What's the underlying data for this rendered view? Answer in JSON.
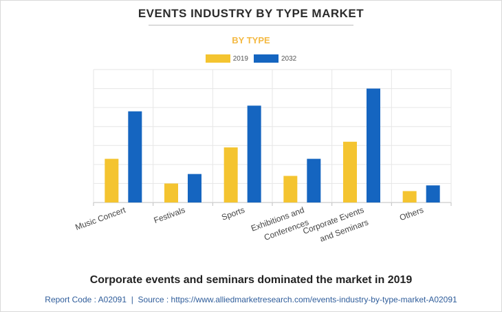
{
  "header": {
    "title": "EVENTS INDUSTRY BY TYPE MARKET",
    "subtitle": "BY TYPE"
  },
  "footer": {
    "caption": "Corporate events and seminars dominated the market in 2019",
    "report_code_label": "Report Code : A02091",
    "separator": "|",
    "source_label": "Source : https://www.alliedmarketresearch.com/events-industry-by-type-market-A02091"
  },
  "colors": {
    "series_2019": "#f4c430",
    "series_2032": "#1565c0",
    "subtitle": "#f4b942",
    "grid": "#e6e6e6",
    "axis": "#bfbfbf"
  },
  "chart_data": {
    "type": "bar",
    "title": "EVENTS INDUSTRY BY TYPE MARKET",
    "subtitle": "BY TYPE",
    "categories": [
      [
        "Music Concert"
      ],
      [
        "Festivals"
      ],
      [
        "Sports"
      ],
      [
        "Exhibitions and",
        "Conferences"
      ],
      [
        "Corporate Events",
        "and Seminars"
      ],
      [
        "Others"
      ]
    ],
    "series": [
      {
        "name": "2019",
        "values": [
          2.3,
          1.0,
          2.9,
          1.4,
          3.2,
          0.6
        ]
      },
      {
        "name": "2032",
        "values": [
          4.8,
          1.5,
          5.1,
          2.3,
          6.0,
          0.9
        ]
      }
    ],
    "ylim": [
      0,
      7
    ],
    "y_tick_labels_shown": false,
    "grid": true,
    "legend_position": "top-center"
  }
}
